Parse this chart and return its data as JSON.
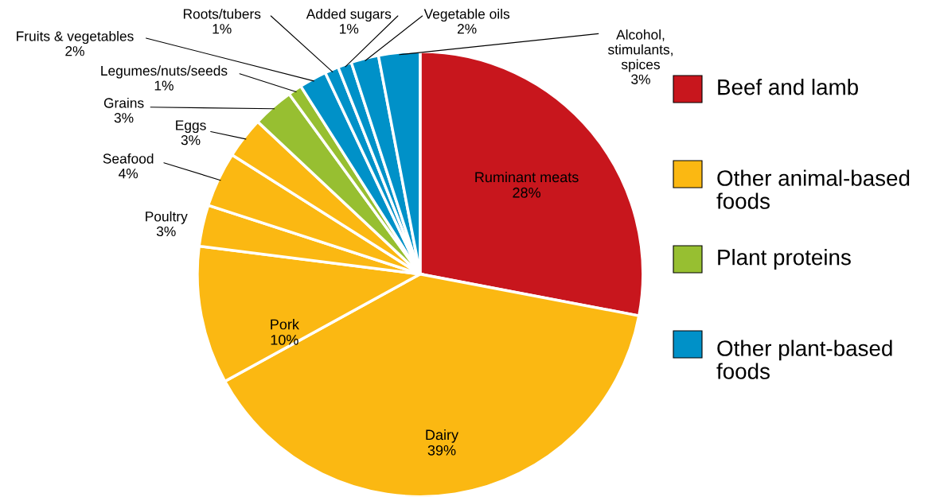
{
  "chart_data": {
    "type": "pie",
    "categories": [
      "Ruminant meats",
      "Dairy",
      "Pork",
      "Poultry",
      "Seafood",
      "Eggs",
      "Grains",
      "Legumes/nuts/seeds",
      "Fruits & vegetables",
      "Roots/tubers",
      "Added sugars",
      "Vegetable oils",
      "Alcohol, stimulants, spices"
    ],
    "values": [
      28,
      39,
      10,
      3,
      4,
      3,
      3,
      1,
      2,
      1,
      1,
      2,
      3
    ],
    "value_labels": [
      "28%",
      "39%",
      "10%",
      "3%",
      "4%",
      "3%",
      "3%",
      "1%",
      "2%",
      "1%",
      "1%",
      "2%",
      "3%"
    ],
    "colors": [
      "#c8161d",
      "#fbb812",
      "#fbb812",
      "#fbb812",
      "#fbb812",
      "#fbb812",
      "#97bf31",
      "#97bf31",
      "#0091c8",
      "#0091c8",
      "#0091c8",
      "#0091c8",
      "#0091c8"
    ],
    "annotations": [
      "Beef and lamb",
      "Other animal-based foods",
      "Plant proteins",
      "Other plant-based foods"
    ]
  }
}
